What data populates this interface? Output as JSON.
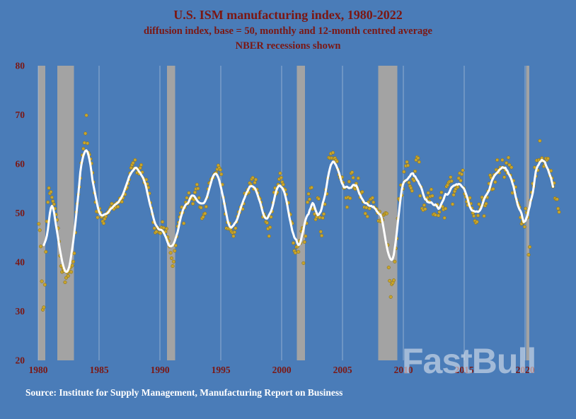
{
  "header": {
    "title": "U.S. ISM manufacturing index, 1980-2022",
    "subtitle1": "diffusion index, base = 50, monthly and 12-month centred average",
    "subtitle2": "NBER recessions shown"
  },
  "footer": {
    "source": "Source: Institute for Supply Management, Manufacturing Report on Business"
  },
  "watermark": "FastBull",
  "colors": {
    "background": "#4a7cb8",
    "grid": "#b9c9de",
    "recession_band": "#a3a3a3",
    "dots": "#c8a42c",
    "dot_edge": "#7e6a1a",
    "average_line": "#ffffff",
    "title_text": "#7b1713",
    "axis_text": "#7b1713",
    "source_text": "#ffffff"
  },
  "chart_data": {
    "type": "scatter",
    "title": "U.S. ISM manufacturing index, 1980-2022",
    "subtitle": "diffusion index, base = 50, monthly and 12-month centred average",
    "note": "NBER recessions shown",
    "source": "Source: Institute for Supply Management, Manufacturing Report on Business",
    "xlabel": "",
    "ylabel": "",
    "ylim": [
      20,
      80
    ],
    "yticks": [
      20,
      30,
      40,
      50,
      60,
      70,
      80
    ],
    "xlim": [
      1979.3,
      2022.9
    ],
    "xticks": [
      1980,
      1985,
      1990,
      1995,
      2000,
      2005,
      2010,
      2015,
      2020
    ],
    "grid": "vertical-only",
    "series": [
      {
        "name": "monthly diffusion index",
        "style": "scatter",
        "color": "#c8a42c"
      },
      {
        "name": "12-month centred average",
        "style": "line",
        "color": "#ffffff",
        "derived": "centered-12-month-average-of-monthly"
      }
    ],
    "recessions": [
      [
        1980.0,
        1980.58
      ],
      [
        1981.58,
        1982.92
      ],
      [
        1990.58,
        1991.25
      ],
      [
        2001.25,
        2001.92
      ],
      [
        2007.92,
        2009.5
      ],
      [
        2020.08,
        2020.33
      ]
    ],
    "monthly_by_year": {
      "1980": [
        47.8,
        46.5,
        43.2,
        36.1,
        30.3,
        30.8,
        35.4,
        42.1,
        48.3,
        52.2,
        55.1,
        54.0
      ],
      "1981": [
        54.3,
        53.2,
        52.4,
        51.8,
        50.9,
        49.7,
        48.6,
        46.9,
        44.2,
        41.3,
        39.2,
        38.0
      ],
      "1982": [
        38.7,
        38.2,
        35.9,
        36.8,
        37.9,
        37.2,
        38.1,
        38.9,
        38.0,
        39.3,
        40.1,
        41.8
      ],
      "1983": [
        46.0,
        50.2,
        51.9,
        53.8,
        55.3,
        57.1,
        60.2,
        61.8,
        63.1,
        64.3,
        66.2,
        69.9
      ],
      "1984": [
        64.2,
        62.3,
        61.9,
        61.0,
        60.1,
        58.2,
        56.3,
        54.1,
        52.2,
        50.3,
        49.1,
        50.2
      ],
      "1985": [
        50.9,
        50.1,
        49.2,
        48.3,
        47.9,
        48.8,
        49.3,
        49.9,
        50.2,
        50.1,
        50.8,
        51.2
      ],
      "1986": [
        51.9,
        51.1,
        50.8,
        51.7,
        51.2,
        52.1,
        51.3,
        52.2,
        53.0,
        52.8,
        52.3,
        53.1
      ],
      "1987": [
        54.0,
        53.8,
        54.9,
        55.2,
        56.0,
        56.8,
        58.1,
        59.2,
        59.8,
        60.2,
        59.1,
        60.8
      ],
      "1988": [
        59.1,
        58.2,
        58.9,
        58.0,
        59.2,
        59.8,
        58.3,
        57.1,
        56.2,
        56.0,
        56.8,
        55.9
      ],
      "1989": [
        55.2,
        54.0,
        52.1,
        51.0,
        49.8,
        48.1,
        46.9,
        46.0,
        46.2,
        47.1,
        46.8,
        46.0
      ],
      "1990": [
        45.9,
        47.1,
        48.2,
        47.0,
        46.1,
        46.2,
        46.8,
        45.1,
        44.3,
        43.2,
        41.9,
        40.8
      ],
      "1991": [
        39.2,
        40.1,
        42.3,
        43.4,
        45.2,
        47.3,
        48.1,
        49.2,
        50.0,
        51.2,
        50.1,
        47.9
      ],
      "1992": [
        51.1,
        52.2,
        53.1,
        51.9,
        54.1,
        52.8,
        53.2,
        53.0,
        51.9,
        52.7,
        54.2,
        54.9
      ],
      "1993": [
        55.8,
        55.0,
        53.1,
        51.2,
        51.1,
        48.9,
        49.2,
        49.8,
        49.9,
        51.3,
        53.2,
        54.9
      ],
      "1994": [
        56.1,
        56.2,
        56.9,
        57.1,
        57.2,
        57.9,
        58.1,
        58.2,
        58.9,
        59.7,
        59.2,
        58.8
      ],
      "1995": [
        57.9,
        55.8,
        53.2,
        51.9,
        49.8,
        46.9,
        48.1,
        46.8,
        47.9,
        46.7,
        46.2,
        46.0
      ],
      "1996": [
        45.3,
        46.1,
        46.9,
        48.2,
        49.3,
        50.2,
        50.1,
        51.2,
        51.0,
        50.8,
        51.9,
        54.0
      ],
      "1997": [
        53.8,
        53.9,
        54.8,
        54.2,
        56.1,
        55.8,
        56.9,
        57.2,
        54.9,
        56.2,
        56.8,
        54.8
      ],
      "1998": [
        54.1,
        53.2,
        52.9,
        52.2,
        51.1,
        49.2,
        49.8,
        49.3,
        48.2,
        48.0,
        46.8,
        45.3
      ],
      "1999": [
        47.1,
        49.2,
        50.3,
        52.1,
        54.2,
        55.1,
        53.9,
        54.2,
        55.8,
        56.9,
        58.1,
        57.2
      ],
      "2000": [
        56.3,
        55.8,
        54.9,
        54.7,
        53.8,
        51.9,
        52.1,
        49.9,
        49.7,
        48.2,
        47.9,
        43.9
      ],
      "2001": [
        42.3,
        41.9,
        43.1,
        43.2,
        42.1,
        44.3,
        43.9,
        46.3,
        47.0,
        39.8,
        44.1,
        45.3
      ],
      "2002": [
        47.9,
        52.2,
        53.9,
        52.8,
        55.1,
        55.2,
        50.8,
        50.9,
        49.8,
        48.7,
        49.2,
        53.1
      ],
      "2003": [
        52.9,
        49.1,
        46.2,
        45.4,
        49.0,
        49.8,
        51.8,
        54.8,
        53.9,
        57.1,
        61.3,
        61.2
      ],
      "2004": [
        62.1,
        61.2,
        62.3,
        61.1,
        61.2,
        60.8,
        60.5,
        58.9,
        57.8,
        57.2,
        56.9,
        57.3
      ],
      "2005": [
        56.2,
        55.1,
        55.2,
        53.1,
        51.2,
        53.2,
        56.4,
        53.0,
        58.1,
        58.3,
        57.2,
        55.1
      ],
      "2006": [
        54.9,
        56.0,
        55.2,
        57.1,
        54.2,
        53.2,
        54.1,
        54.3,
        52.3,
        51.2,
        49.9,
        51.1
      ],
      "2007": [
        49.3,
        52.2,
        50.9,
        52.8,
        52.9,
        53.1,
        52.2,
        51.2,
        50.9,
        50.8,
        50.0,
        48.4
      ],
      "2008": [
        50.3,
        48.3,
        48.9,
        48.6,
        49.6,
        49.8,
        50.0,
        49.9,
        43.5,
        38.9,
        36.2,
        32.9
      ],
      "2009": [
        35.5,
        35.8,
        36.3,
        40.1,
        42.8,
        44.8,
        48.9,
        52.9,
        52.6,
        55.7,
        53.6,
        54.9
      ],
      "2010": [
        58.4,
        56.5,
        59.6,
        60.4,
        59.7,
        56.2,
        55.5,
        55.1,
        54.5,
        56.9,
        56.6,
        58.5
      ],
      "2011": [
        60.8,
        61.4,
        61.2,
        60.4,
        53.5,
        55.3,
        50.9,
        50.6,
        51.6,
        50.8,
        52.7,
        53.1
      ],
      "2012": [
        54.1,
        52.4,
        53.4,
        54.8,
        53.5,
        49.7,
        49.8,
        49.6,
        51.5,
        51.7,
        49.5,
        50.2
      ],
      "2013": [
        53.1,
        54.2,
        51.3,
        50.7,
        49.0,
        50.9,
        55.4,
        55.7,
        56.2,
        56.4,
        57.3,
        56.5
      ],
      "2014": [
        51.8,
        53.7,
        54.4,
        54.9,
        55.4,
        55.3,
        57.1,
        58.1,
        56.6,
        57.9,
        58.7,
        55.1
      ],
      "2015": [
        53.9,
        53.3,
        52.3,
        51.6,
        52.8,
        53.1,
        51.9,
        51.0,
        50.0,
        49.4,
        48.4,
        48.0
      ],
      "2016": [
        48.2,
        49.5,
        51.8,
        50.8,
        51.3,
        53.2,
        52.6,
        49.4,
        51.5,
        51.9,
        53.2,
        54.5
      ],
      "2017": [
        56.0,
        57.7,
        57.2,
        54.8,
        54.9,
        57.8,
        56.3,
        58.8,
        60.8,
        58.7,
        58.2,
        59.3
      ],
      "2018": [
        59.1,
        60.8,
        59.3,
        57.3,
        58.7,
        60.2,
        58.1,
        61.3,
        59.8,
        57.7,
        59.3,
        54.1
      ],
      "2019": [
        56.6,
        54.2,
        55.3,
        52.8,
        52.1,
        51.7,
        51.2,
        49.1,
        47.8,
        48.3,
        48.1,
        47.2
      ],
      "2020": [
        50.9,
        50.1,
        49.1,
        41.5,
        43.1,
        52.6,
        54.2,
        56.0,
        55.4,
        59.3,
        57.5,
        60.7
      ],
      "2021": [
        58.7,
        60.8,
        64.7,
        60.7,
        61.2,
        60.6,
        59.5,
        59.9,
        61.1,
        60.8,
        61.1,
        58.7
      ],
      "2022": [
        57.6,
        58.6,
        57.1,
        55.4,
        56.1,
        53.0,
        52.8,
        52.8,
        50.9,
        50.2
      ]
    }
  }
}
